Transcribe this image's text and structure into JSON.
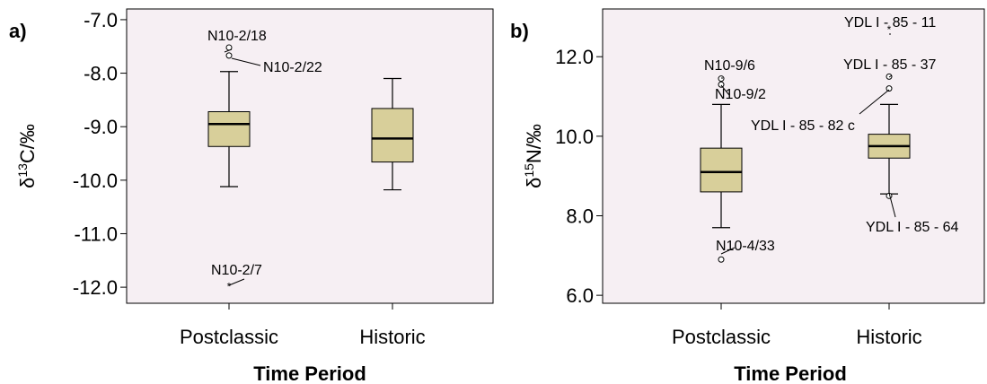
{
  "chart_data": [
    {
      "type": "boxplot",
      "panel_label": "a)",
      "xlabel": "Time Period",
      "ylabel_main": "δ",
      "ylabel_sup": "13",
      "ylabel_rest": "C/‰",
      "ylim": [
        -12.3,
        -6.8
      ],
      "yticks": [
        "-12.0",
        "-11.0",
        "-10.0",
        "-9.0",
        "-8.0",
        "-7.0"
      ],
      "ytick_values": [
        -12.0,
        -11.0,
        -10.0,
        -9.0,
        -8.0,
        -7.0
      ],
      "categories": [
        "Postclassic",
        "Historic"
      ],
      "boxes": [
        {
          "category": "Postclassic",
          "min": -10.12,
          "q1": -9.37,
          "median": -8.95,
          "q3": -8.72,
          "max": -7.97
        },
        {
          "category": "Historic",
          "min": -10.18,
          "q1": -9.66,
          "median": -9.22,
          "q3": -8.66,
          "max": -8.1
        }
      ],
      "outliers": [
        {
          "category": "Postclassic",
          "value": -7.52,
          "marker": "circle",
          "label": "N10-2/18"
        },
        {
          "category": "Postclassic",
          "value": -7.67,
          "marker": "circle",
          "label": "N10-2/22"
        },
        {
          "category": "Postclassic",
          "value": -11.97,
          "marker": "star",
          "label": "N10-2/7"
        }
      ]
    },
    {
      "type": "boxplot",
      "panel_label": "b)",
      "xlabel": "Time Period",
      "ylabel_main": "δ",
      "ylabel_sup": "15",
      "ylabel_rest": "N/‰",
      "ylim": [
        5.8,
        13.2
      ],
      "yticks": [
        "6.0",
        "8.0",
        "10.0",
        "12.0"
      ],
      "ytick_values": [
        6.0,
        8.0,
        10.0,
        12.0
      ],
      "categories": [
        "Postclassic",
        "Historic"
      ],
      "boxes": [
        {
          "category": "Postclassic",
          "min": 7.7,
          "q1": 8.6,
          "median": 9.1,
          "q3": 9.7,
          "max": 10.8
        },
        {
          "category": "Historic",
          "min": 8.55,
          "q1": 9.45,
          "median": 9.75,
          "q3": 10.05,
          "max": 10.8
        }
      ],
      "outliers": [
        {
          "category": "Postclassic",
          "value": 11.45,
          "marker": "circle",
          "label": "N10-9/6"
        },
        {
          "category": "Postclassic",
          "value": 11.3,
          "marker": "circle",
          "label": "N10-9/2"
        },
        {
          "category": "Postclassic",
          "value": 6.9,
          "marker": "circle",
          "label": "N10-4/33"
        },
        {
          "category": "Historic",
          "value": 12.7,
          "marker": "star",
          "label": "YDL I - 85 - 11"
        },
        {
          "category": "Historic",
          "value": 11.5,
          "marker": "circle",
          "label": "YDL I - 85 - 37"
        },
        {
          "category": "Historic",
          "value": 11.2,
          "marker": "circle",
          "label": "YDL I - 85 - 82 c"
        },
        {
          "category": "Historic",
          "value": 8.5,
          "marker": "circle",
          "label": "YDL I - 85 - 64"
        }
      ]
    }
  ],
  "colors": {
    "plot_background": "#f6eff3",
    "box_fill": "#d8cf9a",
    "axis": "#000000"
  }
}
